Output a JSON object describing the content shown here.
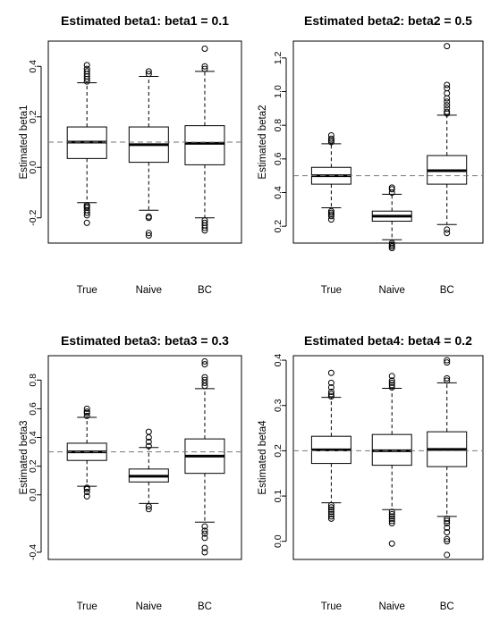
{
  "chart_data": [
    {
      "type": "boxplot",
      "title": "Estimated beta1: beta1 = 0.1",
      "ylabel": "Estimated beta1",
      "categories": [
        "True",
        "Naive",
        "BC"
      ],
      "ylim": [
        -0.3,
        0.5
      ],
      "yticks": [
        -0.2,
        0.0,
        0.2,
        0.4
      ],
      "ytick_labels": [
        "-0.2",
        "0.0",
        "0.2",
        "0.4"
      ],
      "reference_line": 0.1,
      "boxes": [
        {
          "whisker_low": -0.14,
          "q1": 0.035,
          "median": 0.1,
          "q3": 0.16,
          "whisker_high": 0.335,
          "outliers": [
            -0.22,
            -0.19,
            -0.18,
            -0.17,
            -0.16,
            -0.155,
            -0.15,
            0.34,
            0.35,
            0.36,
            0.37,
            0.38,
            0.39,
            0.405
          ]
        },
        {
          "whisker_low": -0.17,
          "q1": 0.02,
          "median": 0.09,
          "q3": 0.16,
          "whisker_high": 0.36,
          "outliers": [
            -0.27,
            -0.26,
            -0.2,
            -0.195,
            0.37,
            0.38
          ]
        },
        {
          "whisker_low": -0.2,
          "q1": 0.01,
          "median": 0.095,
          "q3": 0.165,
          "whisker_high": 0.38,
          "outliers": [
            -0.25,
            -0.24,
            -0.23,
            -0.22,
            -0.21,
            0.39,
            0.4,
            0.47
          ]
        }
      ]
    },
    {
      "type": "boxplot",
      "title": "Estimated beta2: beta2 = 0.5",
      "ylabel": "Estimated beta2",
      "categories": [
        "True",
        "Naive",
        "BC"
      ],
      "ylim": [
        0.1,
        1.3
      ],
      "yticks": [
        0.2,
        0.4,
        0.6,
        0.8,
        1.0,
        1.2
      ],
      "ytick_labels": [
        "0.2",
        "0.4",
        "0.6",
        "0.8",
        "1.0",
        "1.2"
      ],
      "reference_line": 0.5,
      "boxes": [
        {
          "whisker_low": 0.31,
          "q1": 0.45,
          "median": 0.5,
          "q3": 0.55,
          "whisker_high": 0.69,
          "outliers": [
            0.24,
            0.26,
            0.27,
            0.28,
            0.29,
            0.7,
            0.71,
            0.72,
            0.74
          ]
        },
        {
          "whisker_low": 0.12,
          "q1": 0.23,
          "median": 0.26,
          "q3": 0.29,
          "whisker_high": 0.39,
          "outliers": [
            0.07,
            0.08,
            0.09,
            0.1,
            0.4,
            0.42,
            0.43
          ]
        },
        {
          "whisker_low": 0.21,
          "q1": 0.45,
          "median": 0.53,
          "q3": 0.62,
          "whisker_high": 0.86,
          "outliers": [
            0.16,
            0.18,
            0.87,
            0.88,
            0.9,
            0.92,
            0.94,
            0.96,
            0.99,
            1.02,
            1.04,
            1.27
          ]
        }
      ]
    },
    {
      "type": "boxplot",
      "title": "Estimated beta3: beta3 = 0.3",
      "ylabel": "Estimated beta3",
      "categories": [
        "True",
        "Naive",
        "BC"
      ],
      "ylim": [
        -0.45,
        0.97
      ],
      "yticks": [
        -0.4,
        0.0,
        0.2,
        0.4,
        0.6,
        0.8
      ],
      "ytick_labels": [
        "-0.4",
        "0.0",
        "0.2",
        "0.4",
        "0.6",
        "0.8"
      ],
      "reference_line": 0.3,
      "boxes": [
        {
          "whisker_low": 0.06,
          "q1": 0.24,
          "median": 0.3,
          "q3": 0.36,
          "whisker_high": 0.54,
          "outliers": [
            -0.01,
            0.02,
            0.04,
            0.05,
            0.55,
            0.57,
            0.58,
            0.6
          ]
        },
        {
          "whisker_low": -0.06,
          "q1": 0.09,
          "median": 0.13,
          "q3": 0.18,
          "whisker_high": 0.33,
          "outliers": [
            -0.1,
            -0.08,
            0.34,
            0.37,
            0.4,
            0.44
          ]
        },
        {
          "whisker_low": -0.19,
          "q1": 0.15,
          "median": 0.27,
          "q3": 0.39,
          "whisker_high": 0.74,
          "outliers": [
            -0.4,
            -0.37,
            -0.3,
            -0.27,
            -0.25,
            -0.22,
            0.76,
            0.78,
            0.8,
            0.82,
            0.91,
            0.93
          ]
        }
      ]
    },
    {
      "type": "boxplot",
      "title": "Estimated beta4: beta4 = 0.2",
      "ylabel": "Estimated beta4",
      "categories": [
        "True",
        "Naive",
        "BC"
      ],
      "ylim": [
        -0.04,
        0.41
      ],
      "yticks": [
        0.0,
        0.1,
        0.2,
        0.3,
        0.4
      ],
      "ytick_labels": [
        "0.0",
        "0.1",
        "0.2",
        "0.3",
        "0.4"
      ],
      "reference_line": 0.2,
      "boxes": [
        {
          "whisker_low": 0.085,
          "q1": 0.172,
          "median": 0.202,
          "q3": 0.232,
          "whisker_high": 0.318,
          "outliers": [
            0.05,
            0.055,
            0.06,
            0.065,
            0.07,
            0.075,
            0.08,
            0.32,
            0.325,
            0.33,
            0.34,
            0.35,
            0.372
          ]
        },
        {
          "whisker_low": 0.07,
          "q1": 0.168,
          "median": 0.2,
          "q3": 0.236,
          "whisker_high": 0.338,
          "outliers": [
            -0.005,
            0.04,
            0.045,
            0.05,
            0.055,
            0.06,
            0.065,
            0.34,
            0.345,
            0.35,
            0.355,
            0.365
          ]
        },
        {
          "whisker_low": 0.055,
          "q1": 0.165,
          "median": 0.203,
          "q3": 0.242,
          "whisker_high": 0.35,
          "outliers": [
            -0.03,
            0.0,
            0.005,
            0.02,
            0.03,
            0.04,
            0.045,
            0.05,
            0.355,
            0.36,
            0.395,
            0.4
          ]
        }
      ]
    }
  ]
}
